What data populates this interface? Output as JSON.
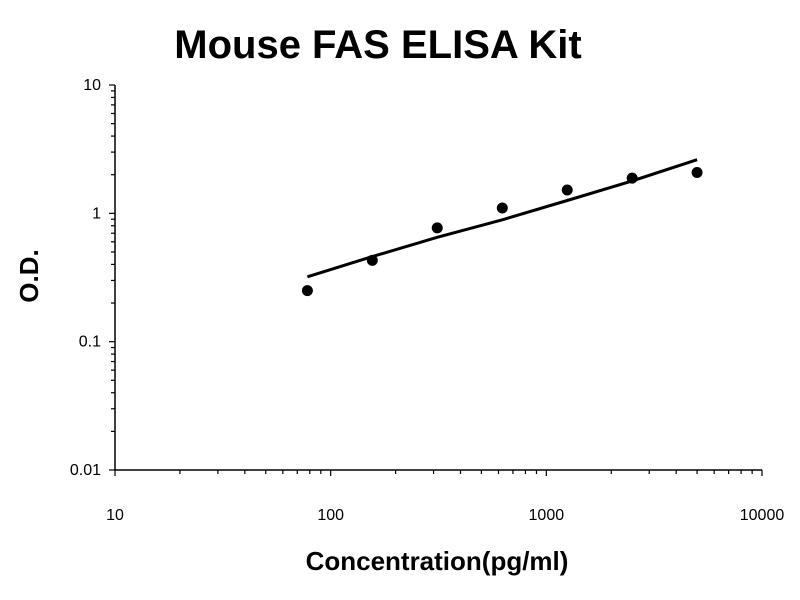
{
  "chart_data": {
    "type": "scatter",
    "title": "Mouse FAS ELISA Kit",
    "xlabel": "Concentration(pg/ml)",
    "ylabel": "O.D.",
    "x_scale": "log",
    "y_scale": "log",
    "xlim": [
      10,
      10000
    ],
    "ylim": [
      0.01,
      10
    ],
    "x_ticks": [
      "10",
      "100",
      "1000",
      "10000"
    ],
    "y_ticks": [
      "0.01",
      "0.1",
      "1",
      "10"
    ],
    "grid": false,
    "legend": "none",
    "series": [
      {
        "x": [
          78,
          156,
          312,
          625,
          1250,
          2500,
          5000
        ],
        "y": [
          0.25,
          0.43,
          0.77,
          1.1,
          1.52,
          1.88,
          2.08
        ],
        "marker": "circle"
      }
    ],
    "fit": {
      "type": "power-curve",
      "x": [
        78,
        156,
        312,
        625,
        1250,
        2500,
        5000
      ],
      "y": [
        0.32,
        0.46,
        0.65,
        0.89,
        1.26,
        1.79,
        2.62
      ]
    }
  }
}
